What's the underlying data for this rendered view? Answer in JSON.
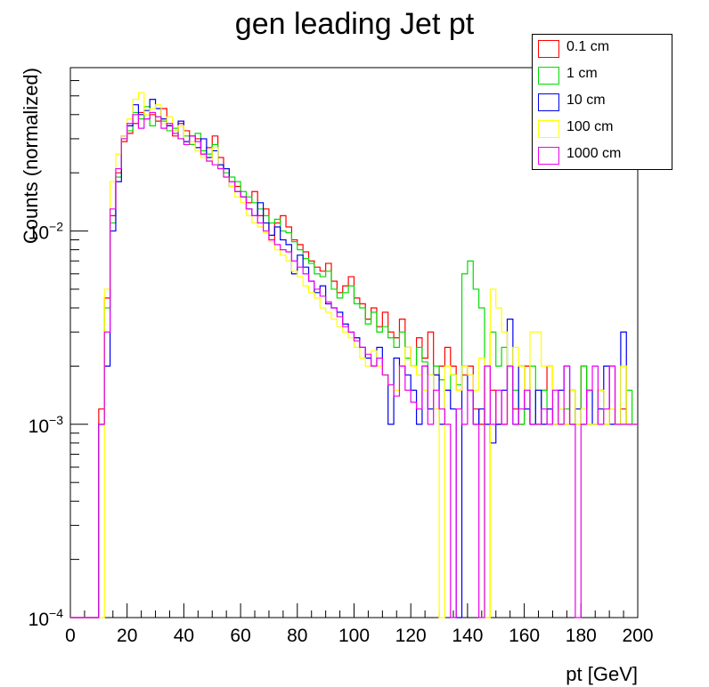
{
  "chart_data": {
    "type": "histogram",
    "title": "gen leading Jet pt",
    "xlabel": "pt [GeV]",
    "ylabel": "Counts (normalized)",
    "xlim": [
      0,
      200
    ],
    "ylim": [
      0.0001,
      0.07
    ],
    "yscale": "log",
    "bin_width": 2,
    "x_ticks": [
      "0",
      "20",
      "40",
      "60",
      "80",
      "100",
      "120",
      "140",
      "160",
      "180",
      "200"
    ],
    "y_ticks": [
      {
        "value": 0.0001,
        "base": "10",
        "exp": "−4"
      },
      {
        "value": 0.001,
        "base": "10",
        "exp": "−3"
      },
      {
        "value": 0.01,
        "base": "10",
        "exp": "−2"
      }
    ],
    "legend_position": "top-right",
    "series": [
      {
        "name": "0.1 cm",
        "color": "#ff0000",
        "values": [
          0,
          0,
          0,
          0,
          0,
          0.0012,
          0.0045,
          0.012,
          0.02,
          0.029,
          0.032,
          0.036,
          0.041,
          0.038,
          0.04,
          0.037,
          0.043,
          0.035,
          0.031,
          0.036,
          0.033,
          0.028,
          0.03,
          0.025,
          0.027,
          0.031,
          0.024,
          0.021,
          0.018,
          0.017,
          0.015,
          0.014,
          0.016,
          0.012,
          0.013,
          0.009,
          0.011,
          0.012,
          0.0105,
          0.009,
          0.0085,
          0.0078,
          0.007,
          0.0065,
          0.0062,
          0.0068,
          0.0055,
          0.0048,
          0.0052,
          0.0058,
          0.0045,
          0.0042,
          0.0035,
          0.004,
          0.0032,
          0.0038,
          0.003,
          0.0028,
          0.0035,
          0.0025,
          0.002,
          0.0028,
          0.0022,
          0.003,
          0.0018,
          0.002,
          0.0025,
          0.002,
          0.0015,
          0.0018,
          0.002,
          0.0012,
          0.001,
          0.002,
          0.0015,
          0.001,
          0.001,
          0.002,
          0.0012,
          0.001,
          0.002,
          0.001,
          0.001,
          0.0015,
          0.002,
          0.001,
          0.0012,
          0.001,
          0.0015,
          0.001,
          0.002,
          0.001,
          0.001,
          0.0015,
          0.001,
          0.002,
          0.001,
          0.0012,
          0.001,
          0.001
        ]
      },
      {
        "name": "1 cm",
        "color": "#00dd00",
        "values": [
          0,
          0,
          0,
          0,
          0,
          0.001,
          0.004,
          0.011,
          0.019,
          0.03,
          0.033,
          0.041,
          0.038,
          0.044,
          0.035,
          0.039,
          0.037,
          0.033,
          0.034,
          0.03,
          0.031,
          0.028,
          0.032,
          0.026,
          0.025,
          0.028,
          0.022,
          0.02,
          0.019,
          0.018,
          0.016,
          0.015,
          0.014,
          0.013,
          0.012,
          0.011,
          0.0115,
          0.01,
          0.0098,
          0.0088,
          0.008,
          0.0072,
          0.0068,
          0.006,
          0.0058,
          0.0062,
          0.005,
          0.0045,
          0.0048,
          0.0052,
          0.0042,
          0.004,
          0.0033,
          0.0038,
          0.003,
          0.0032,
          0.0028,
          0.0025,
          0.003,
          0.0022,
          0.002,
          0.0025,
          0.0021,
          0.0018,
          0.002,
          0.0017,
          0.0015,
          0.0018,
          0.0016,
          0.006,
          0.007,
          0.005,
          0.004,
          0.0001,
          0.003,
          0.002,
          0.0025,
          0.002,
          0.0015,
          0.001,
          0.0012,
          0.002,
          0.001,
          0.0015,
          0.0012,
          0.001,
          0.001,
          0.0012,
          0.0015,
          0.001,
          0.002,
          0.001,
          0.001,
          0.0015,
          0.001,
          0.0012,
          0.001,
          0.001,
          0.0015,
          0.001
        ]
      },
      {
        "name": "10 cm",
        "color": "#0000ee",
        "values": [
          0,
          0,
          0,
          0,
          0,
          0.001,
          0.002,
          0.01,
          0.018,
          0.031,
          0.035,
          0.045,
          0.04,
          0.042,
          0.048,
          0.043,
          0.038,
          0.035,
          0.033,
          0.037,
          0.029,
          0.031,
          0.027,
          0.03,
          0.024,
          0.026,
          0.022,
          0.021,
          0.017,
          0.016,
          0.015,
          0.013,
          0.012,
          0.014,
          0.011,
          0.0095,
          0.0105,
          0.009,
          0.0085,
          0.006,
          0.0075,
          0.0065,
          0.0055,
          0.0048,
          0.0052,
          0.0042,
          0.004,
          0.0038,
          0.0033,
          0.003,
          0.0028,
          0.0025,
          0.0022,
          0.002,
          0.0025,
          0.0018,
          0.001,
          0.0022,
          0.002,
          0.0018,
          0.0015,
          0.001,
          0.002,
          0.0012,
          0.0018,
          0.001,
          0.0015,
          0.0012,
          0.0001,
          0.002,
          0.0015,
          0.001,
          0.0012,
          0.001,
          0.0008,
          0.001,
          0.0015,
          0.0035,
          0.001,
          0.002,
          0.0012,
          0.001,
          0.0015,
          0.001,
          0.0012,
          0.001,
          0.0015,
          0.002,
          0.001,
          0.0012,
          0.001,
          0.0015,
          0.001,
          0.0012,
          0.002,
          0.001,
          0.001,
          0.003,
          0.001,
          0.001
        ]
      },
      {
        "name": "100 cm",
        "color": "#ffff00",
        "values": [
          0,
          0,
          0,
          0,
          0,
          0.0001,
          0.005,
          0.018,
          0.025,
          0.031,
          0.038,
          0.048,
          0.052,
          0.04,
          0.043,
          0.045,
          0.036,
          0.039,
          0.033,
          0.035,
          0.028,
          0.029,
          0.026,
          0.024,
          0.023,
          0.027,
          0.021,
          0.019,
          0.017,
          0.015,
          0.014,
          0.012,
          0.011,
          0.0105,
          0.0098,
          0.0088,
          0.008,
          0.0075,
          0.007,
          0.0062,
          0.0058,
          0.0052,
          0.0048,
          0.0045,
          0.004,
          0.0038,
          0.0035,
          0.0032,
          0.003,
          0.0028,
          0.0025,
          0.0022,
          0.002,
          0.0024,
          0.002,
          0.0018,
          0.0016,
          0.0015,
          0.002,
          0.0025,
          0.002,
          0.0018,
          0.0015,
          0.0018,
          0.0012,
          0.0001,
          0.002,
          0.0018,
          0.0015,
          0.002,
          0.0018,
          0.0015,
          0.0022,
          0.0001,
          0.005,
          0.004,
          0.003,
          0.002,
          0.0025,
          0.002,
          0.0015,
          0.003,
          0.003,
          0.002,
          0.002,
          0.001,
          0.0012,
          0.001,
          0.0015,
          0.001,
          0.0012,
          0.001,
          0.001,
          0.0015,
          0.001,
          0.0012,
          0.001,
          0.002,
          0.001,
          0.001
        ]
      },
      {
        "name": "1000 cm",
        "color": "#ee00ee",
        "values": [
          0,
          0,
          0,
          0,
          0,
          0.001,
          0.003,
          0.013,
          0.021,
          0.03,
          0.036,
          0.04,
          0.034,
          0.038,
          0.041,
          0.039,
          0.034,
          0.036,
          0.032,
          0.03,
          0.028,
          0.031,
          0.029,
          0.025,
          0.023,
          0.022,
          0.021,
          0.019,
          0.018,
          0.016,
          0.015,
          0.013,
          0.012,
          0.011,
          0.01,
          0.009,
          0.0085,
          0.008,
          0.0078,
          0.007,
          0.0065,
          0.006,
          0.0055,
          0.005,
          0.0046,
          0.0043,
          0.004,
          0.0036,
          0.0032,
          0.003,
          0.0027,
          0.0025,
          0.0023,
          0.002,
          0.0022,
          0.0018,
          0.0016,
          0.0014,
          0.002,
          0.0015,
          0.0013,
          0.0012,
          0.002,
          0.001,
          0.0015,
          0.0012,
          0.001,
          0.0001,
          0.0012,
          0.001,
          0.0015,
          0.001,
          0.0001,
          0.002,
          0.001,
          0.0015,
          0.001,
          0.002,
          0.001,
          0.0012,
          0.0015,
          0.001,
          0.001,
          0.0012,
          0.001,
          0.0015,
          0.001,
          0.002,
          0.001,
          0.0001,
          0.001,
          0.0015,
          0.002,
          0.001,
          0.0012,
          0.002,
          0.001,
          0.001,
          0.001,
          0.001
        ]
      }
    ]
  }
}
